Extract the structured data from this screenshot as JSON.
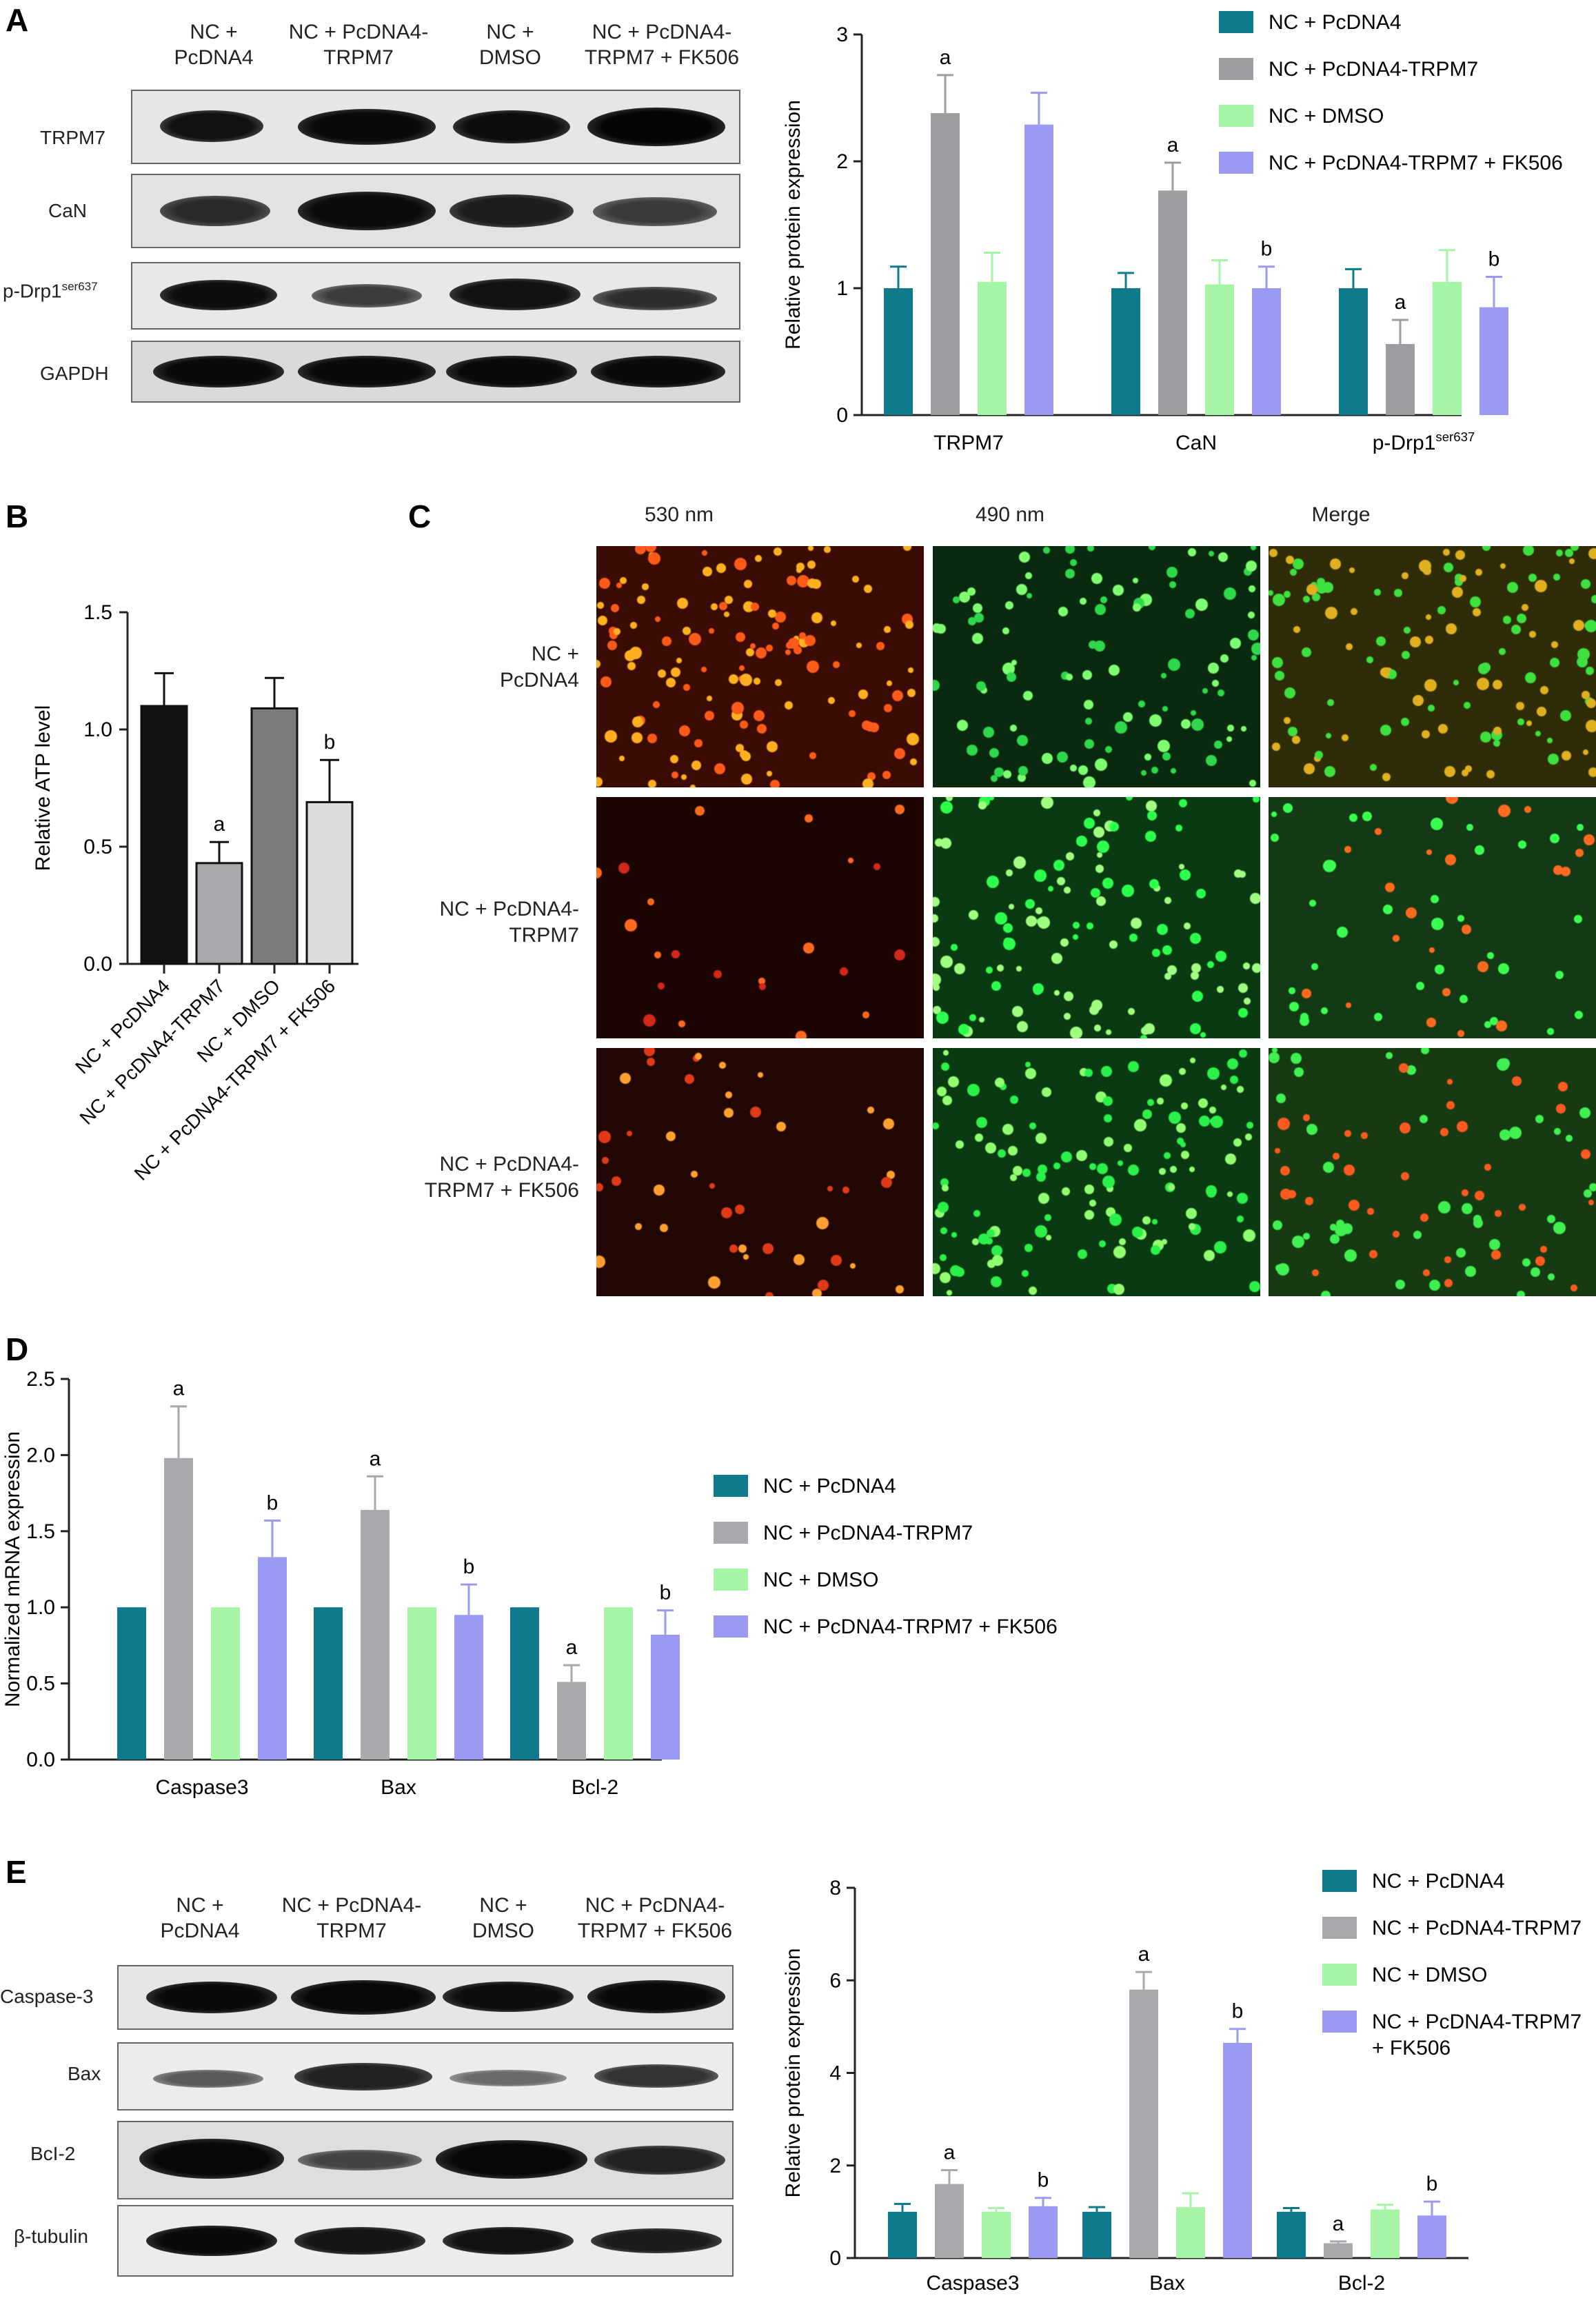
{
  "panels": {
    "A": "A",
    "B": "B",
    "C": "C",
    "D": "D",
    "E": "E"
  },
  "panelA": {
    "lanes": [
      [
        "NC +",
        "PcDNA4"
      ],
      [
        "NC + PcDNA4-",
        "TRPM7"
      ],
      [
        "NC +",
        "DMSO"
      ],
      [
        "NC + PcDNA4-",
        "TRPM7 + FK506"
      ]
    ],
    "rows": [
      {
        "label": "TRPM7"
      },
      {
        "label": "CaN"
      },
      {
        "label": "p-Drp1",
        "sup": "ser637"
      },
      {
        "label": "GAPDH"
      }
    ]
  },
  "panelE": {
    "lanes": [
      [
        "NC +",
        "PcDNA4"
      ],
      [
        "NC + PcDNA4-",
        "TRPM7"
      ],
      [
        "NC +",
        "DMSO"
      ],
      [
        "NC + PcDNA4-",
        "TRPM7 + FK506"
      ]
    ],
    "rows": [
      {
        "label": "Caspase-3"
      },
      {
        "label": "Bax"
      },
      {
        "label": "BcI-2"
      },
      {
        "label": "β-tubulin"
      }
    ]
  },
  "panelC": {
    "columns": [
      "530 nm",
      "490 nm",
      "Merge"
    ],
    "rows": [
      [
        "NC +",
        "PcDNA4"
      ],
      [
        "NC + PcDNA4-",
        "TRPM7"
      ],
      [
        "NC + PcDNA4-",
        "TRPM7 + FK506"
      ]
    ]
  },
  "chart_data": [
    {
      "id": "A-chart",
      "type": "bar",
      "categories": [
        "TRPM7",
        "CaN",
        "p-Drp1"
      ],
      "category_sup": [
        "",
        "",
        "ser637"
      ],
      "ylabel": "Relative protein expression",
      "ylim": [
        0,
        3
      ],
      "yticks": [
        0,
        1,
        2,
        3
      ],
      "legend_position": "top-right",
      "series": [
        {
          "name": "NC + PcDNA4",
          "color": "#0e7a8c",
          "values": [
            1.0,
            1.0,
            1.0
          ],
          "errors": [
            0.17,
            0.12,
            0.15
          ],
          "labels": [
            "",
            "",
            ""
          ]
        },
        {
          "name": "NC + PcDNA4-TRPM7",
          "color": "#9e9ea2",
          "values": [
            2.38,
            1.77,
            0.56
          ],
          "errors": [
            0.3,
            0.22,
            0.19
          ],
          "labels": [
            "a",
            "a",
            "a"
          ]
        },
        {
          "name": "NC + DMSO",
          "color": "#a6f5a6",
          "values": [
            1.05,
            1.03,
            1.05
          ],
          "errors": [
            0.23,
            0.19,
            0.25
          ],
          "labels": [
            "",
            "",
            ""
          ]
        },
        {
          "name": "NC + PcDNA4-TRPM7 + FK506",
          "color": "#9a9af5",
          "values": [
            2.29,
            1.0,
            0.85
          ],
          "errors": [
            0.25,
            0.17,
            0.24
          ],
          "labels": [
            "",
            "b",
            "b"
          ]
        }
      ]
    },
    {
      "id": "B-chart",
      "type": "bar",
      "categories": [
        "NC + PcDNA4",
        "NC + PcDNA4-TRPM7",
        "NC + DMSO",
        "NC + PcDNA4-TRPM7 + FK506"
      ],
      "ylabel": "Relative ATP level",
      "ylim": [
        0,
        1.5
      ],
      "yticks": [
        "0.0",
        "0.5",
        "1.0",
        "1.5"
      ],
      "values": [
        1.1,
        0.43,
        1.09,
        0.69
      ],
      "errors": [
        0.14,
        0.09,
        0.13,
        0.18
      ],
      "colors": [
        "#111111",
        "#a8a8ad",
        "#7c7c7c",
        "#dcdcdc"
      ],
      "labels": [
        "",
        "a",
        "",
        "b"
      ]
    },
    {
      "id": "D-chart",
      "type": "bar",
      "categories": [
        "Caspase3",
        "Bax",
        "Bcl-2"
      ],
      "ylabel": "Normalized mRNA expression",
      "ylim": [
        0,
        2.5
      ],
      "yticks": [
        "0.0",
        "0.5",
        "1.0",
        "1.5",
        "2.0",
        "2.5"
      ],
      "legend_position": "right",
      "series": [
        {
          "name": "NC + PcDNA4",
          "color": "#0e7a8c",
          "values": [
            1.0,
            1.0,
            1.0
          ],
          "errors": [
            0,
            0,
            0
          ],
          "labels": [
            "",
            "",
            ""
          ]
        },
        {
          "name": "NC + PcDNA4-TRPM7",
          "color": "#a8a8ad",
          "values": [
            1.98,
            1.64,
            0.51
          ],
          "errors": [
            0.34,
            0.22,
            0.11
          ],
          "labels": [
            "a",
            "a",
            "a"
          ]
        },
        {
          "name": "NC + DMSO",
          "color": "#a6f5a6",
          "values": [
            1.0,
            1.0,
            1.0
          ],
          "errors": [
            0,
            0,
            0
          ],
          "labels": [
            "",
            "",
            ""
          ]
        },
        {
          "name": "NC + PcDNA4-TRPM7 + FK506",
          "color": "#9a9af5",
          "values": [
            1.33,
            0.95,
            0.82
          ],
          "errors": [
            0.24,
            0.2,
            0.16
          ],
          "labels": [
            "b",
            "b",
            "b"
          ]
        }
      ]
    },
    {
      "id": "E-chart",
      "type": "bar",
      "categories": [
        "Caspase3",
        "Bax",
        "Bcl-2"
      ],
      "ylabel": "Relative protein expression",
      "ylim": [
        0,
        8
      ],
      "yticks": [
        0,
        2,
        4,
        6,
        8
      ],
      "legend_position": "top-right",
      "series": [
        {
          "name": "NC + PcDNA4",
          "color": "#0e7a8c",
          "values": [
            1.0,
            1.0,
            1.0
          ],
          "errors": [
            0.17,
            0.1,
            0.08
          ],
          "labels": [
            "",
            "",
            ""
          ]
        },
        {
          "name": "NC + PcDNA4-TRPM7",
          "color": "#a8a8ad",
          "values": [
            1.6,
            5.8,
            0.32
          ],
          "errors": [
            0.3,
            0.38,
            0.04
          ],
          "labels": [
            "a",
            "a",
            "a"
          ]
        },
        {
          "name": "NC + DMSO",
          "color": "#a6f5a6",
          "values": [
            1.0,
            1.1,
            1.05
          ],
          "errors": [
            0.08,
            0.3,
            0.1
          ],
          "labels": [
            "",
            "",
            ""
          ]
        },
        {
          "name": [
            "NC + PcDNA4-TRPM7",
            "+ FK506"
          ],
          "color": "#9a9af5",
          "values": [
            1.12,
            4.65,
            0.92
          ],
          "errors": [
            0.18,
            0.3,
            0.3
          ],
          "labels": [
            "b",
            "b",
            "b"
          ]
        }
      ]
    }
  ]
}
